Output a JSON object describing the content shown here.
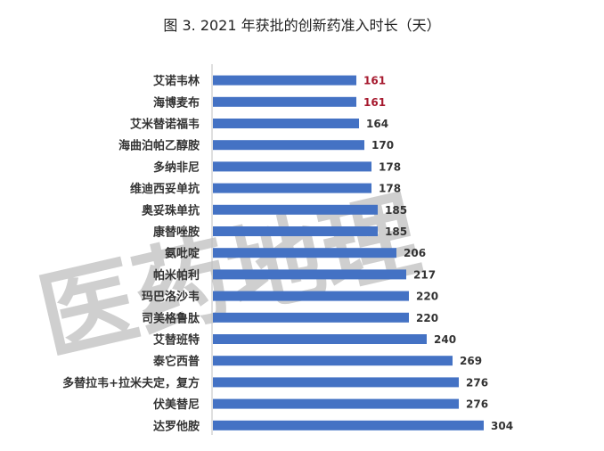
{
  "chart_data": {
    "type": "bar",
    "orientation": "horizontal",
    "title": "图 3. 2021 年获批的创新药准入时长（天）",
    "categories": [
      "艾诺韦林",
      "海博麦布",
      "艾米替诺福韦",
      "海曲泊帕乙醇胺",
      "多纳非尼",
      "维迪西妥单抗",
      "奥妥珠单抗",
      "康替唑胺",
      "氨吡啶",
      "帕米帕利",
      "玛巴洛沙韦",
      "司美格鲁肽",
      "艾替班特",
      "泰它西普",
      "多替拉韦+拉米夫定，复方",
      "伏美替尼",
      "达罗他胺"
    ],
    "values": [
      161,
      161,
      164,
      170,
      178,
      178,
      185,
      185,
      206,
      217,
      220,
      220,
      240,
      269,
      276,
      276,
      304
    ],
    "highlight_indices": [
      0,
      1
    ],
    "xlim": [
      0,
      340
    ],
    "grid": false,
    "legend": "none",
    "colors": {
      "bar": "#4472c4",
      "label": "#333333",
      "highlight_label": "#a6192e",
      "axis": "#bfbfbf"
    }
  },
  "watermark": {
    "text": "医药地理"
  }
}
